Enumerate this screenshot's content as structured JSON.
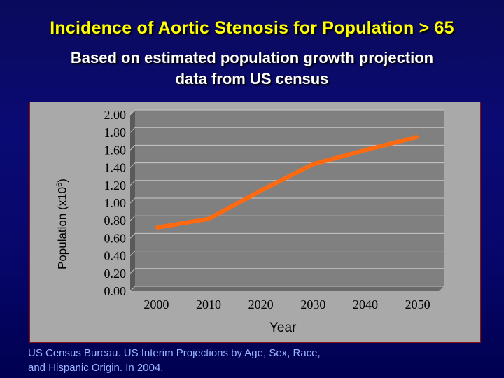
{
  "slide": {
    "title": "Incidence of Aortic Stenosis for Population > 65",
    "subtitle_line1": "Based on estimated population growth projection",
    "subtitle_line2": "data from US census",
    "source_line1": "US Census Bureau.  US Interim Projections by Age, Sex, Race,",
    "source_line2": "and Hispanic Origin.  In 2004."
  },
  "colors": {
    "title": "#ffff00",
    "line": "#ff6a10",
    "plot_bg": "#808080",
    "grid": "#c8c8c8"
  },
  "chart_data": {
    "type": "line",
    "title": "",
    "xlabel": "Year",
    "ylabel_prefix": "Population  (x10",
    "ylabel_exp": "6",
    "ylabel_suffix": ")",
    "x": [
      2000,
      2010,
      2020,
      2030,
      2040,
      2050
    ],
    "x_tick_labels": [
      "2000",
      "2010",
      "2020",
      "2030",
      "2040",
      "2050"
    ],
    "y_tick_labels": [
      "2.00",
      "1.80",
      "1.60",
      "1.40",
      "1.20",
      "1.00",
      "0.80",
      "0.60",
      "0.40",
      "0.20",
      "0.00"
    ],
    "ylim": [
      0,
      2.0
    ],
    "grid": true,
    "series": [
      {
        "name": "Incidence",
        "values": [
          0.72,
          0.82,
          1.14,
          1.44,
          1.6,
          1.75
        ]
      }
    ]
  }
}
